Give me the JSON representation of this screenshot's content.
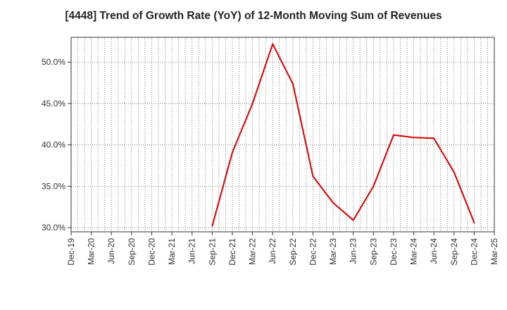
{
  "chart_data": {
    "type": "line",
    "title": "[4448]  Trend of Growth Rate (YoY) of 12-Month Moving Sum of Revenues",
    "xlabel": "",
    "ylabel": "",
    "x_ticks": [
      "Dec-19",
      "Mar-20",
      "Jun-20",
      "Sep-20",
      "Dec-20",
      "Mar-21",
      "Jun-21",
      "Sep-21",
      "Dec-21",
      "Mar-22",
      "Jun-22",
      "Sep-22",
      "Dec-22",
      "Mar-23",
      "Jun-23",
      "Sep-23",
      "Dec-23",
      "Mar-24",
      "Jun-24",
      "Sep-24",
      "Dec-24",
      "Mar-25"
    ],
    "y_ticks": [
      "30.0%",
      "35.0%",
      "40.0%",
      "45.0%",
      "50.0%"
    ],
    "ylim": [
      29.5,
      53.0
    ],
    "grid": true,
    "series": [
      {
        "color": "#e00000",
        "points": [
          {
            "x": "Sep-21",
            "y": 30.2
          },
          {
            "x": "Dec-21",
            "y": 39.1
          },
          {
            "x": "Mar-22",
            "y": 45.0
          },
          {
            "x": "Jun-22",
            "y": 52.2
          },
          {
            "x": "Sep-22",
            "y": 47.4
          },
          {
            "x": "Dec-22",
            "y": 36.2
          },
          {
            "x": "Mar-23",
            "y": 33.0
          },
          {
            "x": "Jun-23",
            "y": 30.9
          },
          {
            "x": "Sep-23",
            "y": 35.0
          },
          {
            "x": "Dec-23",
            "y": 41.2
          },
          {
            "x": "Mar-24",
            "y": 40.9
          },
          {
            "x": "Jun-24",
            "y": 40.8
          },
          {
            "x": "Sep-24",
            "y": 36.7
          },
          {
            "x": "Dec-24",
            "y": 30.6
          }
        ]
      }
    ]
  }
}
